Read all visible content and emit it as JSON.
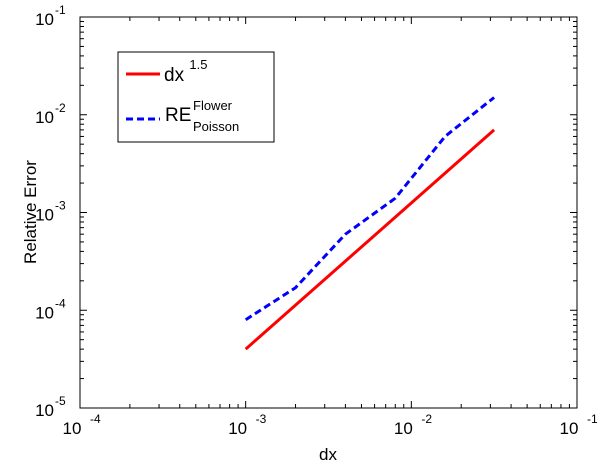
{
  "chart_data": {
    "type": "line",
    "xscale": "log",
    "yscale": "log",
    "xlabel": "dx",
    "ylabel": "Relative Error",
    "xlim": [
      0.0001,
      0.1
    ],
    "ylim": [
      1e-05,
      0.1
    ],
    "xticks": [
      {
        "base": "10",
        "exp": "-4"
      },
      {
        "base": "10",
        "exp": "-3"
      },
      {
        "base": "10",
        "exp": "-2"
      },
      {
        "base": "10",
        "exp": "-1"
      }
    ],
    "yticks": [
      {
        "base": "10",
        "exp": "-5"
      },
      {
        "base": "10",
        "exp": "-4"
      },
      {
        "base": "10",
        "exp": "-3"
      },
      {
        "base": "10",
        "exp": "-2"
      },
      {
        "base": "10",
        "exp": "-1"
      }
    ],
    "legend_position": "top-left",
    "series": [
      {
        "name": "dx^1.5",
        "legend": {
          "base": "dx",
          "sup": "1.5",
          "sub": ""
        },
        "color": "#ff0000",
        "line_style": "solid",
        "x": [
          0.001,
          0.0316
        ],
        "y": [
          4e-05,
          0.007
        ]
      },
      {
        "name": "RE_Poisson^Flower",
        "legend": {
          "base": "RE",
          "sup": "Flower",
          "sub": "Poisson"
        },
        "color": "#0000ff",
        "line_style": "dashed",
        "x": [
          0.001,
          0.002,
          0.004,
          0.008,
          0.016,
          0.0316
        ],
        "y": [
          8e-05,
          0.00017,
          0.0006,
          0.0014,
          0.006,
          0.015
        ]
      }
    ]
  }
}
